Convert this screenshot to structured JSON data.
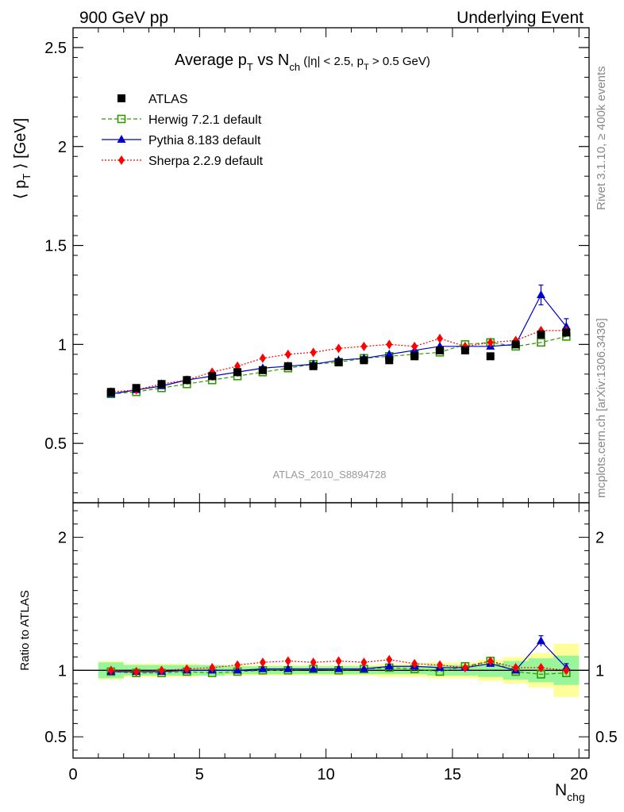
{
  "header": {
    "left": "900 GeV pp",
    "right": "Underlying Event"
  },
  "side_labels": {
    "rivet": "Rivet 3.1.10, ≥ 400k events",
    "mcplots": "mcplots.cern.ch [arXiv:1306.3436]"
  },
  "chart_data": [
    {
      "type": "scatter",
      "title": "Average pT vs Nch (|η| < 2.5, pT > 0.5 GeV)",
      "title_parts": {
        "t1": "Average p",
        "t1_sub": "T",
        "t2": " vs N",
        "t2_sub": "ch",
        "t3": " (|η| < 2.5, p",
        "t3_sub": "T",
        "t4": " > 0.5 GeV)"
      },
      "ylabel_parts": {
        "pre": "⟨ p",
        "sub": "T",
        "post": " ⟩ [GeV]"
      },
      "xlabel_parts": {
        "main": "N",
        "sub": "chg"
      },
      "watermark": "ATLAS_2010_S8894728",
      "xlim": [
        0,
        20.4
      ],
      "ylim": [
        0.2,
        2.6
      ],
      "yticks": [
        0.5,
        1,
        1.5,
        2,
        2.5
      ],
      "ytick_labels": [
        "0.5",
        "1",
        "1.5",
        "2",
        "2.5"
      ],
      "xticks": [
        0,
        5,
        10,
        15,
        20
      ],
      "xtick_labels": [
        "0",
        "5",
        "10",
        "15",
        "20"
      ],
      "legend_position": "top-left",
      "x": [
        1.5,
        2.5,
        3.5,
        4.5,
        5.5,
        6.5,
        7.5,
        8.5,
        9.5,
        10.5,
        11.5,
        12.5,
        13.5,
        14.5,
        15.5,
        16.5,
        17.5,
        18.5,
        19.5
      ],
      "series": [
        {
          "name": "ATLAS",
          "marker": "square-filled",
          "color": "#000000",
          "line": "none",
          "values": [
            0.76,
            0.78,
            0.8,
            0.82,
            0.84,
            0.86,
            0.87,
            0.89,
            0.89,
            0.91,
            0.92,
            0.92,
            0.94,
            0.97,
            0.97,
            0.94,
            1.0,
            1.05,
            1.06
          ]
        },
        {
          "name": "Herwig 7.2.1 default",
          "marker": "square-open",
          "color": "#339900",
          "line": "dashed",
          "values": [
            0.75,
            0.76,
            0.78,
            0.8,
            0.82,
            0.84,
            0.86,
            0.88,
            0.9,
            0.91,
            0.93,
            0.94,
            0.95,
            0.96,
            1.0,
            1.01,
            0.99,
            1.01,
            1.04
          ]
        },
        {
          "name": "Pythia 8.183 default",
          "marker": "triangle",
          "color": "#0000cc",
          "line": "solid",
          "values": [
            0.75,
            0.77,
            0.79,
            0.82,
            0.84,
            0.86,
            0.88,
            0.89,
            0.9,
            0.92,
            0.93,
            0.95,
            0.97,
            0.99,
            0.99,
            0.99,
            1.0,
            1.25,
            1.09
          ],
          "errors": [
            0,
            0,
            0,
            0,
            0,
            0,
            0,
            0,
            0,
            0,
            0,
            0,
            0,
            0,
            0,
            0,
            0,
            0.05,
            0.04
          ]
        },
        {
          "name": "Sherpa 2.2.9 default",
          "marker": "diamond",
          "color": "#ff0000",
          "line": "dotted",
          "values": [
            0.76,
            0.77,
            0.8,
            0.82,
            0.86,
            0.89,
            0.93,
            0.95,
            0.96,
            0.98,
            0.99,
            1.0,
            0.99,
            1.03,
            0.99,
            1.01,
            1.02,
            1.07,
            1.07
          ]
        }
      ]
    },
    {
      "type": "scatter",
      "ylabel": "Ratio to ATLAS",
      "xlim": [
        0,
        20.4
      ],
      "ylim": [
        0.34,
        2.26
      ],
      "yticks": [
        0.5,
        1,
        2
      ],
      "ytick_labels": [
        "0.5",
        "1",
        "2"
      ],
      "x": [
        1.5,
        2.5,
        3.5,
        4.5,
        5.5,
        6.5,
        7.5,
        8.5,
        9.5,
        10.5,
        11.5,
        12.5,
        13.5,
        14.5,
        15.5,
        16.5,
        17.5,
        18.5,
        19.5
      ],
      "band_inner": [
        0.06,
        0.04,
        0.04,
        0.04,
        0.04,
        0.03,
        0.03,
        0.03,
        0.03,
        0.03,
        0.03,
        0.03,
        0.03,
        0.04,
        0.04,
        0.05,
        0.07,
        0.09,
        0.11
      ],
      "band_outer": [
        0.07,
        0.05,
        0.05,
        0.05,
        0.04,
        0.04,
        0.04,
        0.04,
        0.04,
        0.04,
        0.04,
        0.05,
        0.05,
        0.06,
        0.06,
        0.08,
        0.1,
        0.13,
        0.2
      ],
      "band_colors": {
        "inner": "#99f599",
        "outer": "#ffff99"
      },
      "series": [
        {
          "name": "Herwig 7.2.1 default",
          "color": "#339900",
          "values": [
            0.99,
            0.98,
            0.98,
            0.99,
            0.98,
            0.99,
            1.0,
            1.0,
            1.01,
            1.0,
            1.01,
            1.02,
            1.01,
            0.99,
            1.03,
            1.07,
            0.99,
            0.97,
            0.98
          ]
        },
        {
          "name": "Pythia 8.183 default",
          "color": "#0000cc",
          "values": [
            0.99,
            0.99,
            0.99,
            1.0,
            1.0,
            1.0,
            1.01,
            1.01,
            1.01,
            1.01,
            1.01,
            1.03,
            1.03,
            1.02,
            1.02,
            1.05,
            1.0,
            1.22,
            1.02
          ],
          "errors": [
            0,
            0,
            0,
            0,
            0,
            0,
            0,
            0,
            0,
            0,
            0,
            0,
            0,
            0,
            0,
            0,
            0,
            0.04,
            0.03
          ]
        },
        {
          "name": "Sherpa 2.2.9 default",
          "color": "#ff0000",
          "values": [
            1.0,
            0.99,
            1.0,
            1.01,
            1.02,
            1.04,
            1.06,
            1.07,
            1.06,
            1.07,
            1.06,
            1.08,
            1.05,
            1.04,
            1.02,
            1.07,
            1.02,
            1.02,
            1.0
          ]
        }
      ]
    }
  ]
}
